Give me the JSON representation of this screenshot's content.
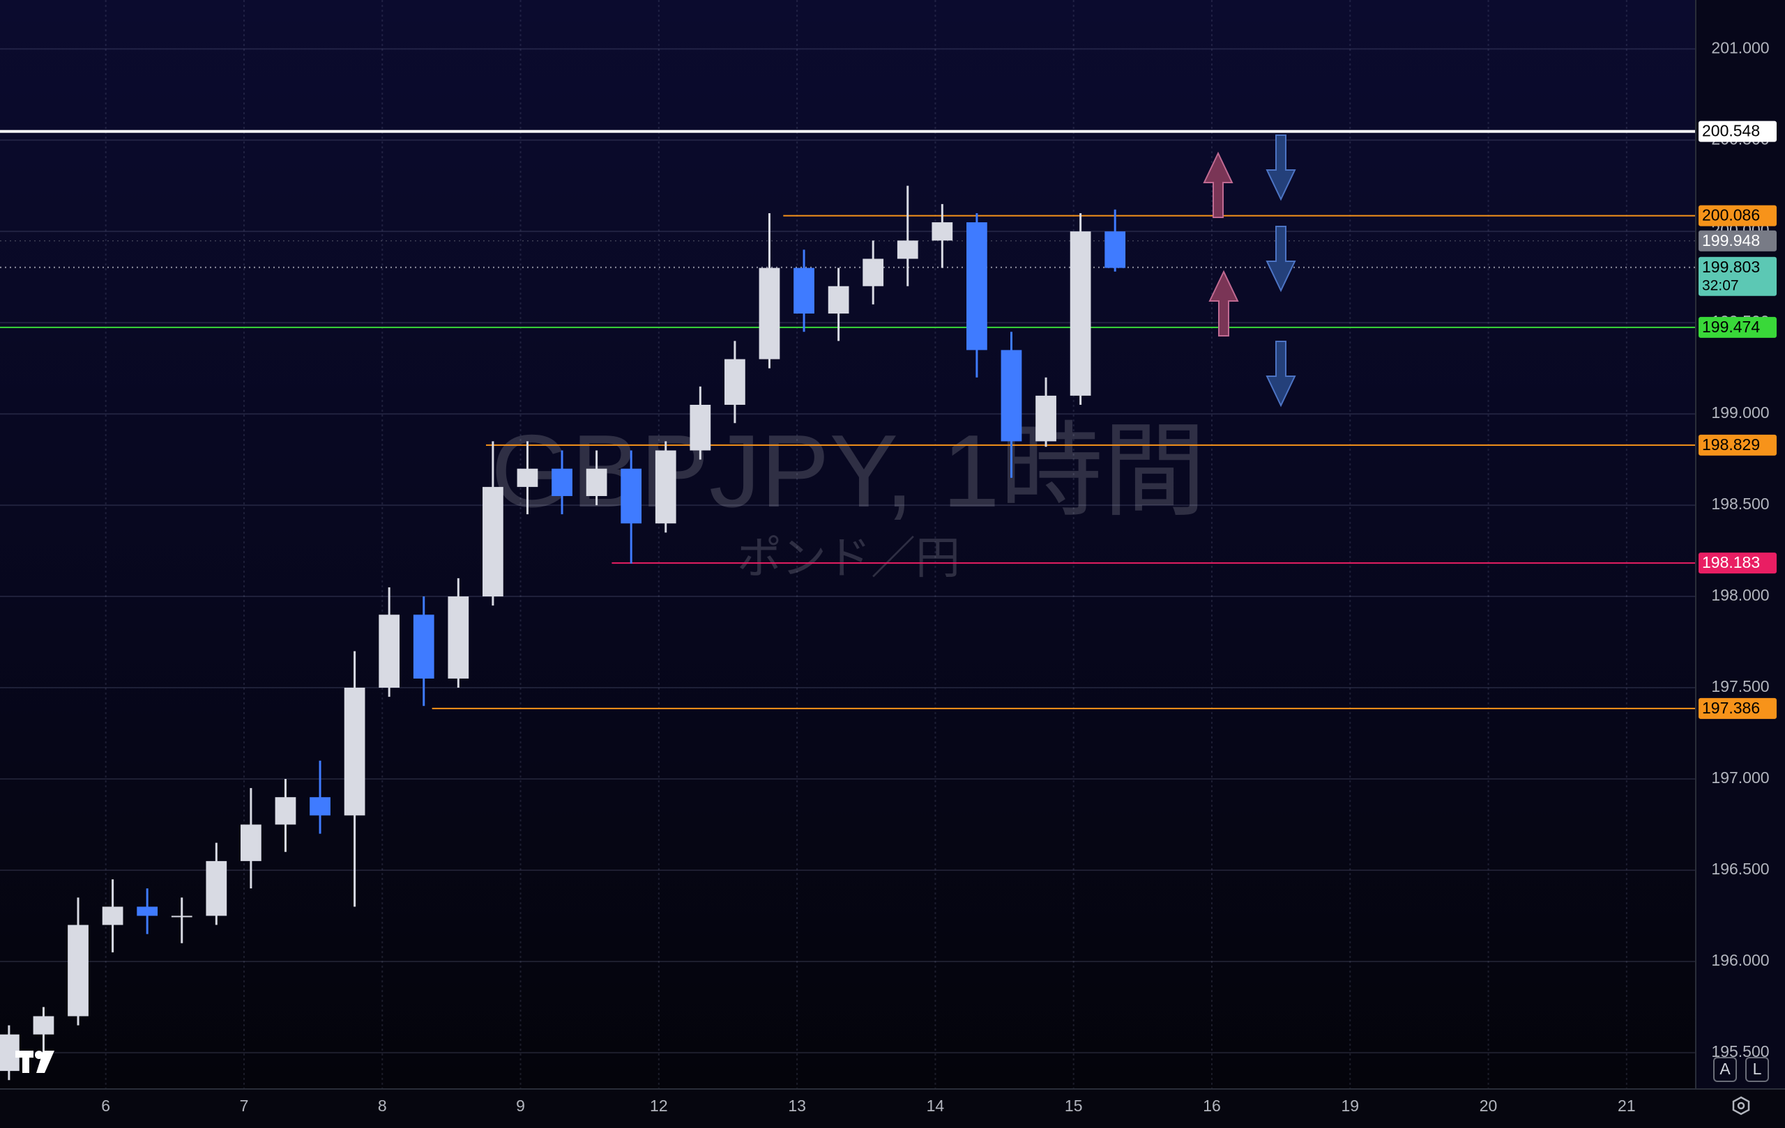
{
  "chart_data": {
    "type": "candlestick",
    "watermark": "GBPJPY, 1時間",
    "watermark_subtitle": "ポンド／円",
    "xlim": [
      -0.765,
      11.5
    ],
    "ylim": [
      195.305,
      201.268
    ],
    "xticks": [
      {
        "value": 0,
        "label": "6"
      },
      {
        "value": 1,
        "label": "7"
      },
      {
        "value": 2,
        "label": "8"
      },
      {
        "value": 3,
        "label": "9"
      },
      {
        "value": 4,
        "label": "12"
      },
      {
        "value": 5,
        "label": "13"
      },
      {
        "value": 6,
        "label": "14"
      },
      {
        "value": 7,
        "label": "15"
      },
      {
        "value": 8,
        "label": "16"
      },
      {
        "value": 9,
        "label": "19"
      },
      {
        "value": 10,
        "label": "20"
      },
      {
        "value": 11,
        "label": "21"
      }
    ],
    "yticks": [
      {
        "value": 201,
        "label": "201.000"
      },
      {
        "value": 200.5,
        "label": "200.500"
      },
      {
        "value": 200,
        "label": "200.000"
      },
      {
        "value": 199.5,
        "label": "199.500"
      },
      {
        "value": 199,
        "label": "199.000"
      },
      {
        "value": 198.5,
        "label": "198.500"
      },
      {
        "value": 198,
        "label": "198.000"
      },
      {
        "value": 197.5,
        "label": "197.500"
      },
      {
        "value": 197,
        "label": "197.000"
      },
      {
        "value": 196.5,
        "label": "196.500"
      },
      {
        "value": 196,
        "label": "196.000"
      },
      {
        "value": 195.5,
        "label": "195.500"
      }
    ],
    "grid": true,
    "up_color": "#d8dae3",
    "down_color": "#3f7bff",
    "candles": {
      "x": [
        -0.7,
        -0.45,
        -0.2,
        0.05,
        0.3,
        0.55,
        0.8,
        1.05,
        1.3,
        1.55,
        1.8,
        2.05,
        2.3,
        2.55,
        2.8,
        3.05,
        3.3,
        3.55,
        3.8,
        4.05,
        4.3,
        4.55,
        4.8,
        5.05,
        5.3,
        5.55,
        5.8,
        6.05,
        6.3,
        6.55,
        6.8,
        7.05,
        7.3
      ],
      "open": [
        195.4,
        195.6,
        195.7,
        196.2,
        196.3,
        196.25,
        196.25,
        196.55,
        196.75,
        196.9,
        196.8,
        197.5,
        197.9,
        197.55,
        198.0,
        198.6,
        198.7,
        198.55,
        198.7,
        198.4,
        198.8,
        199.05,
        199.3,
        199.8,
        199.55,
        199.7,
        199.85,
        199.95,
        200.05,
        199.35,
        198.85,
        199.1,
        200.0
      ],
      "high": [
        195.65,
        195.75,
        196.35,
        196.45,
        196.4,
        196.35,
        196.65,
        196.95,
        197.0,
        197.1,
        197.7,
        198.05,
        198.0,
        198.1,
        198.85,
        198.85,
        198.8,
        198.8,
        198.8,
        198.85,
        199.15,
        199.4,
        200.1,
        199.9,
        199.8,
        199.95,
        200.25,
        200.15,
        200.1,
        199.45,
        199.2,
        200.1,
        200.12
      ],
      "low": [
        195.35,
        195.5,
        195.65,
        196.05,
        196.15,
        196.1,
        196.2,
        196.4,
        196.6,
        196.7,
        196.3,
        197.45,
        197.4,
        197.5,
        197.95,
        198.45,
        198.45,
        198.5,
        198.18,
        198.35,
        198.75,
        198.95,
        199.25,
        199.45,
        199.4,
        199.6,
        199.7,
        199.8,
        199.2,
        198.65,
        198.82,
        199.05,
        199.78
      ],
      "close": [
        195.6,
        195.7,
        196.2,
        196.3,
        196.25,
        196.25,
        196.55,
        196.75,
        196.9,
        196.8,
        197.5,
        197.9,
        197.55,
        198.0,
        198.6,
        198.7,
        198.55,
        198.7,
        198.4,
        198.8,
        199.05,
        199.3,
        199.8,
        199.55,
        199.7,
        199.85,
        199.95,
        200.05,
        199.35,
        198.85,
        199.1,
        200.0,
        199.8
      ]
    },
    "levels": [
      {
        "value": 200.548,
        "color": "#ffffff",
        "text_color": "#000000",
        "style": "solid",
        "width": 4
      },
      {
        "value": 200.086,
        "color": "#f7931a",
        "text_color": "#000000",
        "style": "solid",
        "width": 2,
        "from": 4.9
      },
      {
        "value": 199.948,
        "color": "#787b86",
        "text_color": "#ffffff",
        "style": "dotted",
        "width": 1
      },
      {
        "value": 199.803,
        "color": "#5cc8b4",
        "text_color": "#000000",
        "style": "dotted",
        "width": 2,
        "countdown": "32:07"
      },
      {
        "value": 199.474,
        "color": "#39d839",
        "text_color": "#000000",
        "style": "solid",
        "width": 2
      },
      {
        "value": 198.829,
        "color": "#f7931a",
        "text_color": "#000000",
        "style": "solid",
        "width": 2,
        "from": 2.75
      },
      {
        "value": 198.183,
        "color": "#e91e63",
        "text_color": "#ffffff",
        "style": "solid",
        "width": 2,
        "from": 3.66
      },
      {
        "value": 197.386,
        "color": "#f7931a",
        "text_color": "#000000",
        "style": "solid",
        "width": 2,
        "from": 2.36
      }
    ],
    "buttons": [
      "A",
      "L"
    ]
  }
}
